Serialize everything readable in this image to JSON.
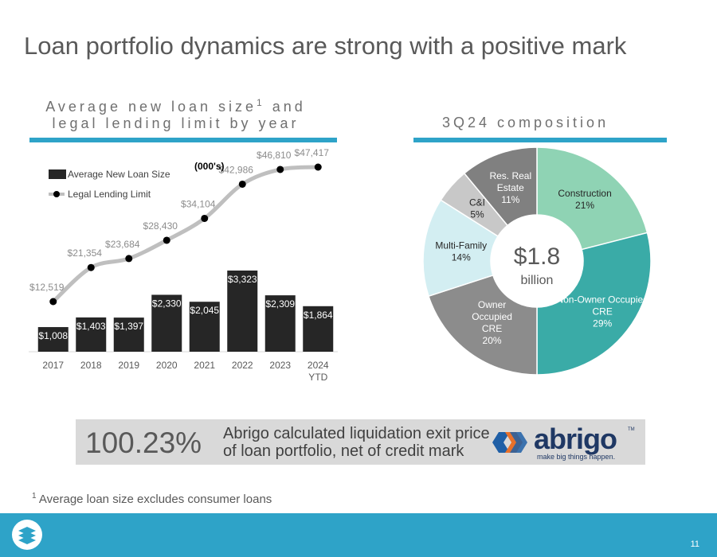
{
  "slide": {
    "title": "Loan portfolio dynamics are strong with a positive mark",
    "left_heading_line1": "Average new loan size",
    "left_heading_sup": "1",
    "left_heading_line1_end": " and",
    "left_heading_line2": "legal lending limit by year",
    "right_heading": "3Q24 composition",
    "page_number": "11"
  },
  "colors": {
    "accent": "#2ea3c8",
    "bar": "#262626",
    "line": "#bfbfbf",
    "marker": "#000000"
  },
  "chart_data": [
    {
      "type": "bar",
      "title": "Average new loan size and legal lending limit by year",
      "unit_note": "(000's)",
      "categories": [
        "2017",
        "2018",
        "2019",
        "2020",
        "2021",
        "2022",
        "2023",
        "2024 YTD"
      ],
      "legend_placement": "top-left",
      "series": [
        {
          "name": "Average New Loan Size",
          "type": "bar",
          "values": [
            1008,
            1403,
            1397,
            2330,
            2045,
            3323,
            2309,
            1864
          ],
          "labels": [
            "$1,008",
            "$1,403",
            "$1,397",
            "$2,330",
            "$2,045",
            "$3,323",
            "$2,309",
            "$1,864"
          ]
        },
        {
          "name": "Legal Lending Limit",
          "type": "line",
          "values": [
            12519,
            21354,
            23684,
            28430,
            34104,
            42986,
            46810,
            47417
          ],
          "labels": [
            "$12,519",
            "$21,354",
            "$23,684",
            "$28,430",
            "$34,104",
            "$42,986",
            "$46,810",
            "$47,417"
          ]
        }
      ],
      "grid": false
    },
    {
      "type": "pie",
      "title": "3Q24 composition",
      "center_value": "$1.8",
      "center_unit": "billion",
      "slices": [
        {
          "name": "Construction",
          "value": 21,
          "label": "21%",
          "color": "#8fd3b4"
        },
        {
          "name": "Non-Owner Occupied CRE",
          "value": 29,
          "label": "29%",
          "color": "#3aaba7"
        },
        {
          "name": "Owner Occupied CRE",
          "value": 20,
          "label": "20%",
          "color": "#8c8c8c"
        },
        {
          "name": "Multi-Family",
          "value": 14,
          "label": "14%",
          "color": "#d3eef2"
        },
        {
          "name": "C&I",
          "value": 5,
          "label": "5%",
          "color": "#c8c8c8"
        },
        {
          "name": "Res. Real Estate",
          "value": 11,
          "label": "11%",
          "color": "#808080"
        }
      ]
    }
  ],
  "banner": {
    "percent": "100.23%",
    "line1": "Abrigo calculated liquidation exit price",
    "line2": "of loan portfolio, net of credit mark",
    "logo_word": "abrigo",
    "logo_tm": "TM",
    "logo_tagline": "make big things happen."
  },
  "footnote": {
    "sup": "1",
    "text": " Average loan size excludes consumer loans"
  }
}
